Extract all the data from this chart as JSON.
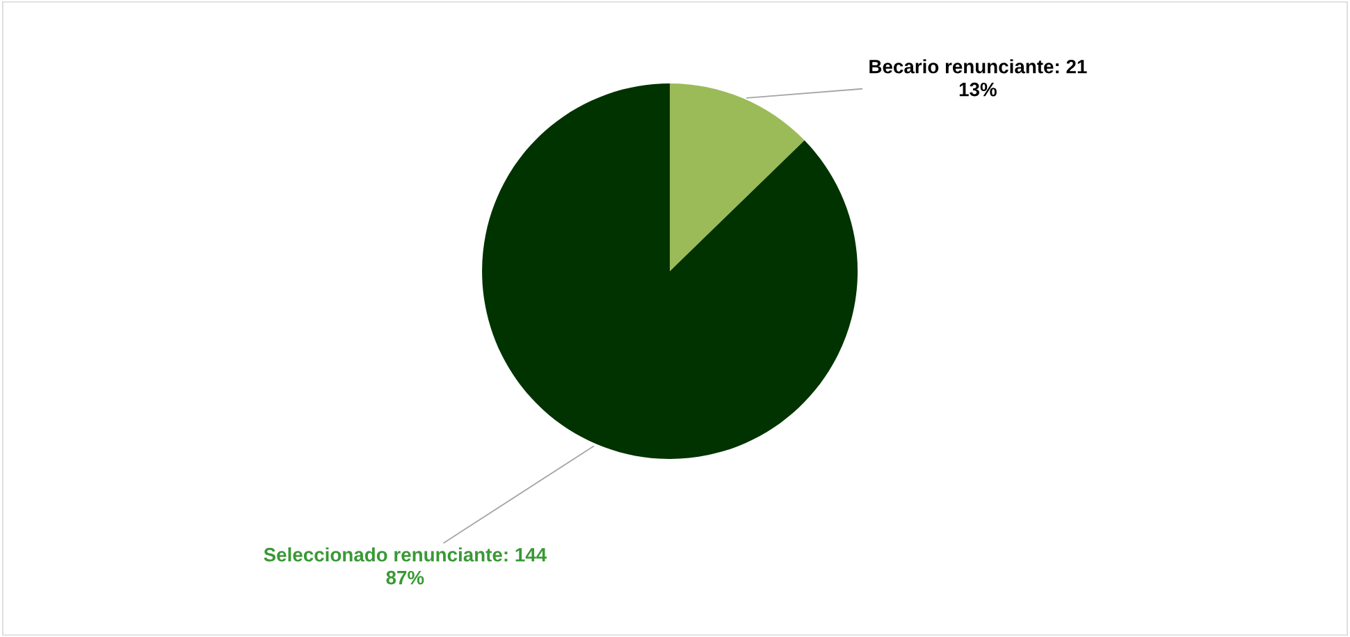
{
  "chart_data": {
    "type": "pie",
    "categories": [
      "Becario renunciante",
      "Seleccionado renunciante"
    ],
    "values": [
      21,
      144
    ],
    "colors": [
      "#9bbb59",
      "#003300"
    ],
    "value_labels": [
      "21\n13%",
      "144\n87%"
    ]
  }
}
